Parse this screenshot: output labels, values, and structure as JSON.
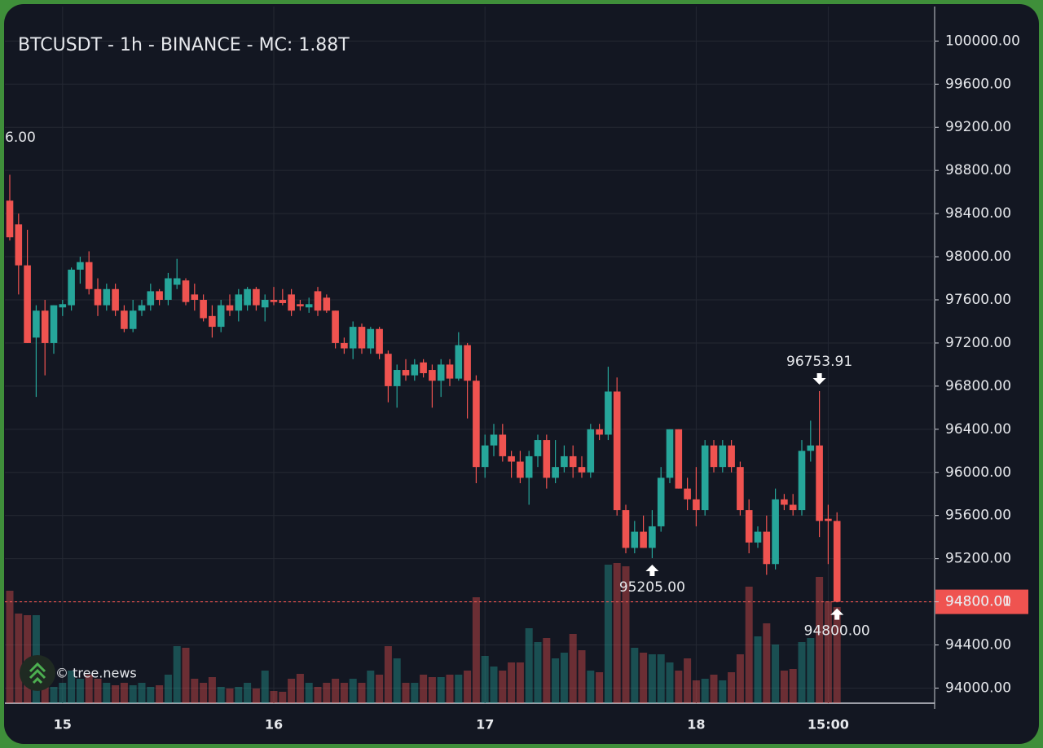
{
  "chart_data": {
    "type": "candlestick",
    "title": "BTCUSDT - 1h - BINANCE - MC: 1.88T",
    "watermark": "© tree.news",
    "cut_label": "6.00",
    "up_color": "#26a69a",
    "down_color": "#ef5350",
    "categories": [
      null,
      null,
      null,
      null,
      null,
      null,
      "15",
      null,
      null,
      null,
      null,
      null,
      null,
      null,
      null,
      null,
      null,
      null,
      null,
      null,
      null,
      null,
      null,
      null,
      null,
      null,
      null,
      null,
      null,
      null,
      "16",
      null,
      null,
      null,
      null,
      null,
      null,
      null,
      null,
      null,
      null,
      null,
      null,
      null,
      null,
      null,
      null,
      null,
      null,
      null,
      null,
      null,
      null,
      null,
      "17",
      null,
      null,
      null,
      null,
      null,
      null,
      null,
      null,
      null,
      null,
      null,
      null,
      null,
      null,
      null,
      null,
      null,
      null,
      null,
      null,
      null,
      null,
      null,
      "18",
      null,
      null,
      null,
      null,
      null,
      null,
      null,
      null,
      null,
      null,
      null,
      null,
      null,
      null,
      "15:00",
      null
    ],
    "open": [
      98520,
      98300,
      97920,
      97250,
      97500,
      97200,
      97530,
      97550,
      97880,
      97950,
      97700,
      97550,
      97700,
      97500,
      97330,
      97500,
      97550,
      97680,
      97600,
      97740,
      97780,
      97650,
      97600,
      97450,
      97350,
      97550,
      97500,
      97550,
      97700,
      97530,
      97600,
      97600,
      97650,
      97560,
      97530,
      97680,
      97620,
      97500,
      97200,
      97150,
      97350,
      97150,
      97330,
      97100,
      96800,
      96950,
      96900,
      97020,
      96950,
      96850,
      97000,
      96870,
      97180,
      96850,
      96050,
      96250,
      96350,
      96150,
      96100,
      95950,
      96150,
      96300,
      95950,
      96050,
      96150,
      96050,
      96000,
      96400,
      96350,
      96750,
      95650,
      95300,
      95450,
      95300,
      95500,
      95950,
      96400,
      95850,
      95750,
      95650,
      96250,
      96050,
      96250,
      96050,
      95650,
      95350,
      95450,
      95150,
      95750,
      95700,
      95650,
      96200,
      96250,
      95570,
      95550
    ],
    "high": [
      98760,
      98400,
      98250,
      97550,
      97600,
      97550,
      97600,
      97900,
      98000,
      98050,
      97800,
      97750,
      97750,
      97550,
      97600,
      97600,
      97750,
      97700,
      97850,
      97980,
      97800,
      97750,
      97650,
      97550,
      97600,
      97650,
      97700,
      97720,
      97720,
      97650,
      97720,
      97700,
      97700,
      97600,
      97620,
      97720,
      97650,
      97500,
      97250,
      97400,
      97380,
      97350,
      97350,
      97130,
      97000,
      97050,
      97050,
      97050,
      97000,
      97050,
      97050,
      97300,
      97200,
      96900,
      96350,
      96450,
      96450,
      96200,
      96200,
      96200,
      96350,
      96350,
      96300,
      96250,
      96250,
      96150,
      96450,
      96450,
      96980,
      96880,
      95700,
      95550,
      95600,
      95650,
      96050,
      96400,
      96400,
      95950,
      96050,
      96300,
      96300,
      96300,
      96300,
      96100,
      95750,
      95500,
      95600,
      95850,
      95800,
      95800,
      96300,
      96480,
      96753.91,
      95700,
      95630
    ],
    "low": [
      98150,
      97650,
      97200,
      96700,
      96900,
      97100,
      97450,
      97500,
      97750,
      97650,
      97450,
      97500,
      97450,
      97300,
      97300,
      97450,
      97500,
      97550,
      97550,
      97700,
      97550,
      97500,
      97400,
      97250,
      97300,
      97450,
      97400,
      97500,
      97500,
      97400,
      97550,
      97550,
      97450,
      97500,
      97480,
      97450,
      97480,
      97150,
      97100,
      97050,
      97100,
      97100,
      97050,
      96650,
      96600,
      96850,
      96850,
      96880,
      96600,
      96700,
      96800,
      96850,
      96500,
      95900,
      95950,
      96150,
      96100,
      95950,
      95900,
      95700,
      96050,
      95850,
      95900,
      96000,
      95950,
      95950,
      95950,
      96300,
      96300,
      95600,
      95250,
      95250,
      95300,
      95205,
      95450,
      95900,
      95850,
      95650,
      95500,
      95600,
      96000,
      96000,
      96000,
      95600,
      95250,
      95300,
      95050,
      95100,
      95650,
      95600,
      95600,
      96100,
      95400,
      95150,
      94800
    ],
    "close": [
      98180,
      97920,
      97200,
      97500,
      97200,
      97550,
      97560,
      97880,
      97950,
      97700,
      97550,
      97700,
      97500,
      97330,
      97500,
      97550,
      97680,
      97600,
      97800,
      97800,
      97580,
      97600,
      97430,
      97350,
      97550,
      97500,
      97650,
      97700,
      97550,
      97600,
      97580,
      97570,
      97500,
      97540,
      97560,
      97500,
      97500,
      97200,
      97150,
      97350,
      97150,
      97330,
      97100,
      96800,
      96950,
      96900,
      97000,
      96920,
      96850,
      97000,
      96870,
      97180,
      96850,
      96050,
      96250,
      96350,
      96150,
      96100,
      95950,
      96150,
      96300,
      95950,
      96050,
      96150,
      96050,
      96000,
      96400,
      96350,
      96750,
      95650,
      95300,
      95450,
      95300,
      95500,
      95950,
      96400,
      95850,
      95750,
      95650,
      96250,
      96050,
      96250,
      96050,
      95650,
      95350,
      95450,
      95150,
      95750,
      95700,
      95650,
      96200,
      96250,
      95550,
      95550,
      94800.01
    ],
    "volume": [
      138,
      110,
      108,
      108,
      30,
      20,
      25,
      40,
      30,
      35,
      30,
      25,
      22,
      25,
      22,
      25,
      20,
      22,
      35,
      70,
      68,
      30,
      25,
      32,
      20,
      18,
      20,
      25,
      18,
      40,
      15,
      14,
      30,
      36,
      25,
      20,
      25,
      30,
      25,
      30,
      25,
      40,
      35,
      70,
      55,
      25,
      25,
      35,
      32,
      32,
      35,
      35,
      40,
      130,
      58,
      45,
      40,
      50,
      50,
      92,
      75,
      80,
      55,
      62,
      85,
      65,
      40,
      38,
      170,
      172,
      168,
      68,
      62,
      60,
      60,
      50,
      40,
      55,
      28,
      30,
      35,
      28,
      38,
      60,
      143,
      82,
      98,
      72,
      40,
      42,
      75,
      80,
      155,
      125,
      118
    ],
    "ylim": [
      93860,
      100320
    ],
    "yticks": [
      {
        "value": 94000,
        "label": "94000.00"
      },
      {
        "value": 94400,
        "label": "94400.00"
      },
      {
        "value": 94800,
        "label": "94800.00"
      },
      {
        "value": 95200,
        "label": "95200.00"
      },
      {
        "value": 95600,
        "label": "95600.00"
      },
      {
        "value": 96000,
        "label": "96000.00"
      },
      {
        "value": 96400,
        "label": "96400.00"
      },
      {
        "value": 96800,
        "label": "96800.00"
      },
      {
        "value": 97200,
        "label": "97200.00"
      },
      {
        "value": 97600,
        "label": "97600.00"
      },
      {
        "value": 98000,
        "label": "98000.00"
      },
      {
        "value": 98400,
        "label": "98400.00"
      },
      {
        "value": 98800,
        "label": "98800.00"
      },
      {
        "value": 99200,
        "label": "99200.00"
      },
      {
        "value": 99600,
        "label": "99600.00"
      },
      {
        "value": 100000,
        "label": "100000.00"
      }
    ],
    "grid": true,
    "last_price": {
      "value": 94800.01,
      "label": "94800.01",
      "color": "#ef5350"
    },
    "annotations": [
      {
        "kind": "high",
        "value": 96753.91,
        "label": "96753.91"
      },
      {
        "kind": "low",
        "value": 95205,
        "label": "95205.00"
      },
      {
        "kind": "low",
        "value": 94800,
        "label": "94800.00"
      }
    ]
  }
}
